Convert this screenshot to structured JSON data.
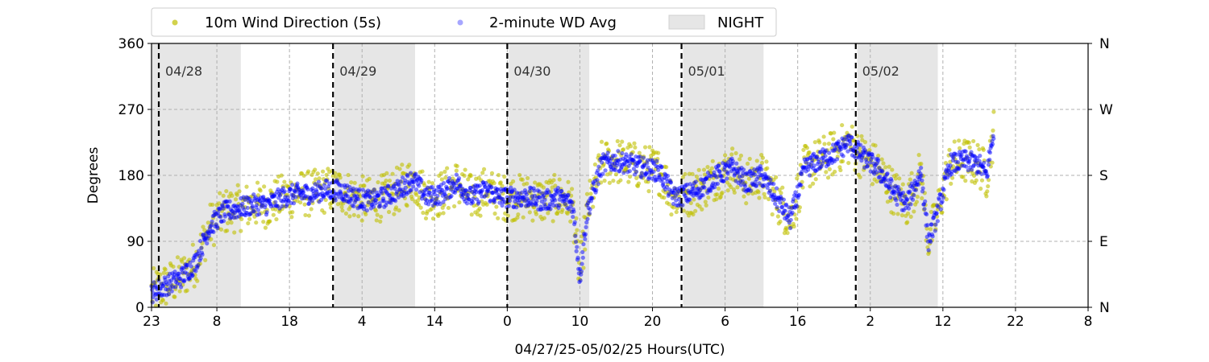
{
  "chart_data": {
    "type": "scatter",
    "xlabel": "04/27/25-05/02/25  Hours(UTC)",
    "ylabel": "Degrees",
    "ylim": [
      0,
      360
    ],
    "x_unit": "hours since 04/27 23:00 UTC",
    "xlim": [
      0,
      129
    ],
    "x_ticks": [
      {
        "x": 0,
        "label": "23"
      },
      {
        "x": 9,
        "label": "8"
      },
      {
        "x": 19,
        "label": "18"
      },
      {
        "x": 29,
        "label": "4"
      },
      {
        "x": 39,
        "label": "14"
      },
      {
        "x": 49,
        "label": "0"
      },
      {
        "x": 59,
        "label": "10"
      },
      {
        "x": 69,
        "label": "20"
      },
      {
        "x": 79,
        "label": "6"
      },
      {
        "x": 89,
        "label": "16"
      },
      {
        "x": 99,
        "label": "2"
      },
      {
        "x": 109,
        "label": "12"
      },
      {
        "x": 119,
        "label": "22"
      },
      {
        "x": 129,
        "label": "8"
      }
    ],
    "y_ticks": [
      0,
      90,
      180,
      270,
      360
    ],
    "y_ticks_right": [
      {
        "y": 0,
        "label": "N"
      },
      {
        "y": 90,
        "label": "E"
      },
      {
        "y": 180,
        "label": "S"
      },
      {
        "y": 270,
        "label": "W"
      },
      {
        "y": 360,
        "label": "N"
      }
    ],
    "grid": true,
    "legend": {
      "placement": "top-left (above plot)",
      "entries": [
        "10m Wind Direction (5s)",
        "2-minute WD Avg",
        "NIGHT"
      ]
    },
    "day_markers": [
      {
        "x": 1,
        "label": "04/28"
      },
      {
        "x": 25,
        "label": "04/29"
      },
      {
        "x": 49,
        "label": "04/30"
      },
      {
        "x": 73,
        "label": "05/01"
      },
      {
        "x": 97,
        "label": "05/02"
      }
    ],
    "night_periods": [
      [
        0,
        12.3
      ],
      [
        25.2,
        36.3
      ],
      [
        49.2,
        60.3
      ],
      [
        73.2,
        84.3
      ],
      [
        97.2,
        108.3
      ]
    ],
    "series": [
      {
        "name": "10m Wind Direction (5s)",
        "color": "#bfbf00",
        "spread": 32,
        "x": [
          0,
          2,
          4,
          6,
          8,
          10,
          12,
          14,
          16,
          18,
          20,
          22,
          24,
          26,
          28,
          30,
          32,
          34,
          36,
          38,
          40,
          42,
          44,
          46,
          48,
          50,
          52,
          54,
          56,
          58,
          59,
          60,
          62,
          64,
          66,
          68,
          70,
          72,
          74,
          76,
          78,
          80,
          82,
          84,
          86,
          88,
          90,
          92,
          94,
          96,
          98,
          100,
          102,
          104,
          106,
          107,
          108,
          110,
          112,
          114,
          115,
          116
        ],
        "y": [
          20,
          30,
          40,
          60,
          110,
          130,
          135,
          140,
          140,
          150,
          155,
          155,
          160,
          160,
          150,
          145,
          150,
          160,
          175,
          150,
          155,
          170,
          150,
          160,
          150,
          150,
          150,
          145,
          150,
          140,
          40,
          130,
          195,
          200,
          195,
          190,
          185,
          150,
          155,
          165,
          180,
          190,
          170,
          180,
          150,
          120,
          190,
          200,
          210,
          225,
          205,
          190,
          160,
          140,
          185,
          90,
          120,
          195,
          200,
          195,
          180,
          240
        ]
      },
      {
        "name": "2-minute WD Avg",
        "color": "#0000ff",
        "spread": 14,
        "x": [
          0,
          2,
          4,
          6,
          8,
          10,
          12,
          14,
          16,
          18,
          20,
          22,
          24,
          26,
          28,
          30,
          32,
          34,
          36,
          38,
          40,
          42,
          44,
          46,
          48,
          50,
          52,
          54,
          56,
          58,
          59,
          60,
          62,
          64,
          66,
          68,
          70,
          72,
          74,
          76,
          78,
          80,
          82,
          84,
          86,
          88,
          90,
          92,
          94,
          96,
          98,
          100,
          102,
          104,
          106,
          107,
          108,
          110,
          112,
          114,
          115,
          116
        ],
        "y": [
          20,
          30,
          40,
          60,
          110,
          130,
          135,
          140,
          140,
          150,
          155,
          155,
          160,
          160,
          150,
          145,
          150,
          160,
          175,
          150,
          155,
          170,
          150,
          160,
          150,
          150,
          150,
          145,
          150,
          140,
          40,
          130,
          195,
          200,
          195,
          190,
          185,
          150,
          155,
          165,
          180,
          190,
          170,
          180,
          150,
          120,
          190,
          200,
          210,
          225,
          205,
          190,
          160,
          140,
          185,
          90,
          120,
          195,
          200,
          195,
          180,
          240
        ]
      }
    ]
  }
}
